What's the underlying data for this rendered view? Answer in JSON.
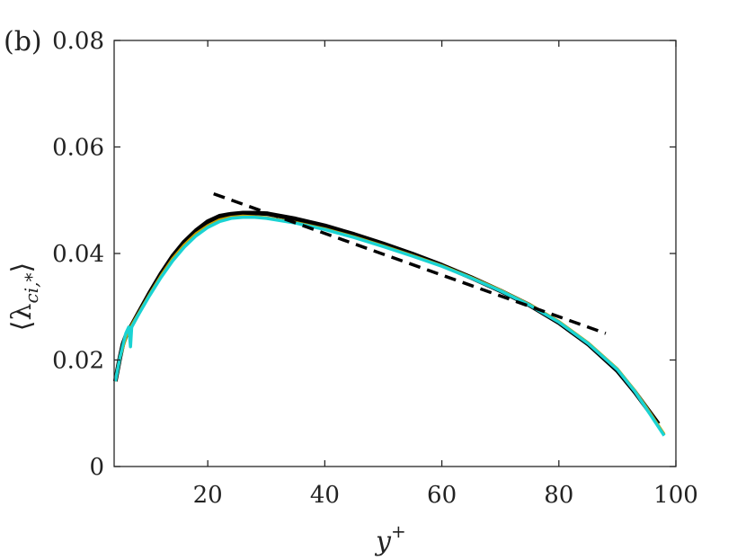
{
  "chart_data": {
    "type": "line",
    "panel_label": "(b)",
    "xlabel": "y",
    "xlabel_sup": "+",
    "ylabel": "⟨λ",
    "ylabel_sub": "ci,*",
    "ylabel_close": "⟩",
    "xlim": [
      4,
      100
    ],
    "ylim": [
      0,
      0.08
    ],
    "xticks": [
      20,
      40,
      60,
      80,
      100
    ],
    "yticks": [
      0,
      0.02,
      0.04,
      0.06,
      0.08
    ],
    "xtick_labels": [
      "20",
      "40",
      "60",
      "80",
      "100"
    ],
    "ytick_labels": [
      "0",
      "0.02",
      "0.04",
      "0.06",
      "0.08"
    ],
    "grid": false,
    "box": true,
    "series": [
      {
        "color": "#000000",
        "style": "solid",
        "x": [
          4.2,
          5,
          5.5,
          6,
          6.5,
          7,
          8,
          10,
          12,
          14,
          16,
          18,
          20,
          22,
          24,
          26,
          28,
          30,
          35,
          40,
          45,
          50,
          55,
          60,
          65,
          70,
          75,
          80,
          85,
          90,
          93,
          95,
          97
        ],
        "y": [
          0.016,
          0.0205,
          0.023,
          0.0245,
          0.0255,
          0.0265,
          0.0285,
          0.0325,
          0.0362,
          0.0395,
          0.0422,
          0.0443,
          0.046,
          0.047,
          0.0474,
          0.0476,
          0.0476,
          0.0475,
          0.0465,
          0.0452,
          0.0436,
          0.0418,
          0.0399,
          0.0378,
          0.0355,
          0.033,
          0.0303,
          0.027,
          0.023,
          0.018,
          0.014,
          0.011,
          0.008
        ]
      },
      {
        "color": "#c8a000",
        "style": "solid",
        "x": [
          4.2,
          5,
          6,
          7,
          8,
          10,
          12,
          14,
          16,
          18,
          20,
          22,
          24,
          26,
          28,
          30,
          35,
          40,
          45,
          50,
          55,
          60,
          65,
          70,
          75,
          80,
          85,
          90,
          93,
          95,
          98
        ],
        "y": [
          0.016,
          0.0205,
          0.0243,
          0.0265,
          0.0284,
          0.0322,
          0.0358,
          0.039,
          0.0416,
          0.0437,
          0.0452,
          0.0463,
          0.0468,
          0.047,
          0.0469,
          0.0467,
          0.0458,
          0.0446,
          0.0431,
          0.0414,
          0.0396,
          0.0377,
          0.0355,
          0.0331,
          0.0304,
          0.0272,
          0.0232,
          0.0183,
          0.0142,
          0.011,
          0.006
        ]
      },
      {
        "color": "#1ad3d3",
        "style": "solid",
        "x": [
          4.2,
          5,
          6,
          6.5,
          6.8,
          7,
          8,
          10,
          12,
          14,
          16,
          18,
          20,
          22,
          24,
          26,
          28,
          30,
          35,
          40,
          45,
          50,
          55,
          60,
          65,
          70,
          75,
          80,
          85,
          90,
          93,
          95,
          98
        ],
        "y": [
          0.016,
          0.0205,
          0.025,
          0.0262,
          0.0225,
          0.0262,
          0.0282,
          0.032,
          0.0355,
          0.0386,
          0.0412,
          0.0433,
          0.0449,
          0.046,
          0.0466,
          0.0468,
          0.0468,
          0.0466,
          0.0457,
          0.0445,
          0.043,
          0.0413,
          0.0395,
          0.0376,
          0.0354,
          0.033,
          0.0303,
          0.0271,
          0.0231,
          0.0182,
          0.0141,
          0.0108,
          0.0058
        ]
      },
      {
        "color": "#000000",
        "style": "dashed",
        "x": [
          21,
          88
        ],
        "y": [
          0.0512,
          0.025
        ]
      }
    ]
  }
}
